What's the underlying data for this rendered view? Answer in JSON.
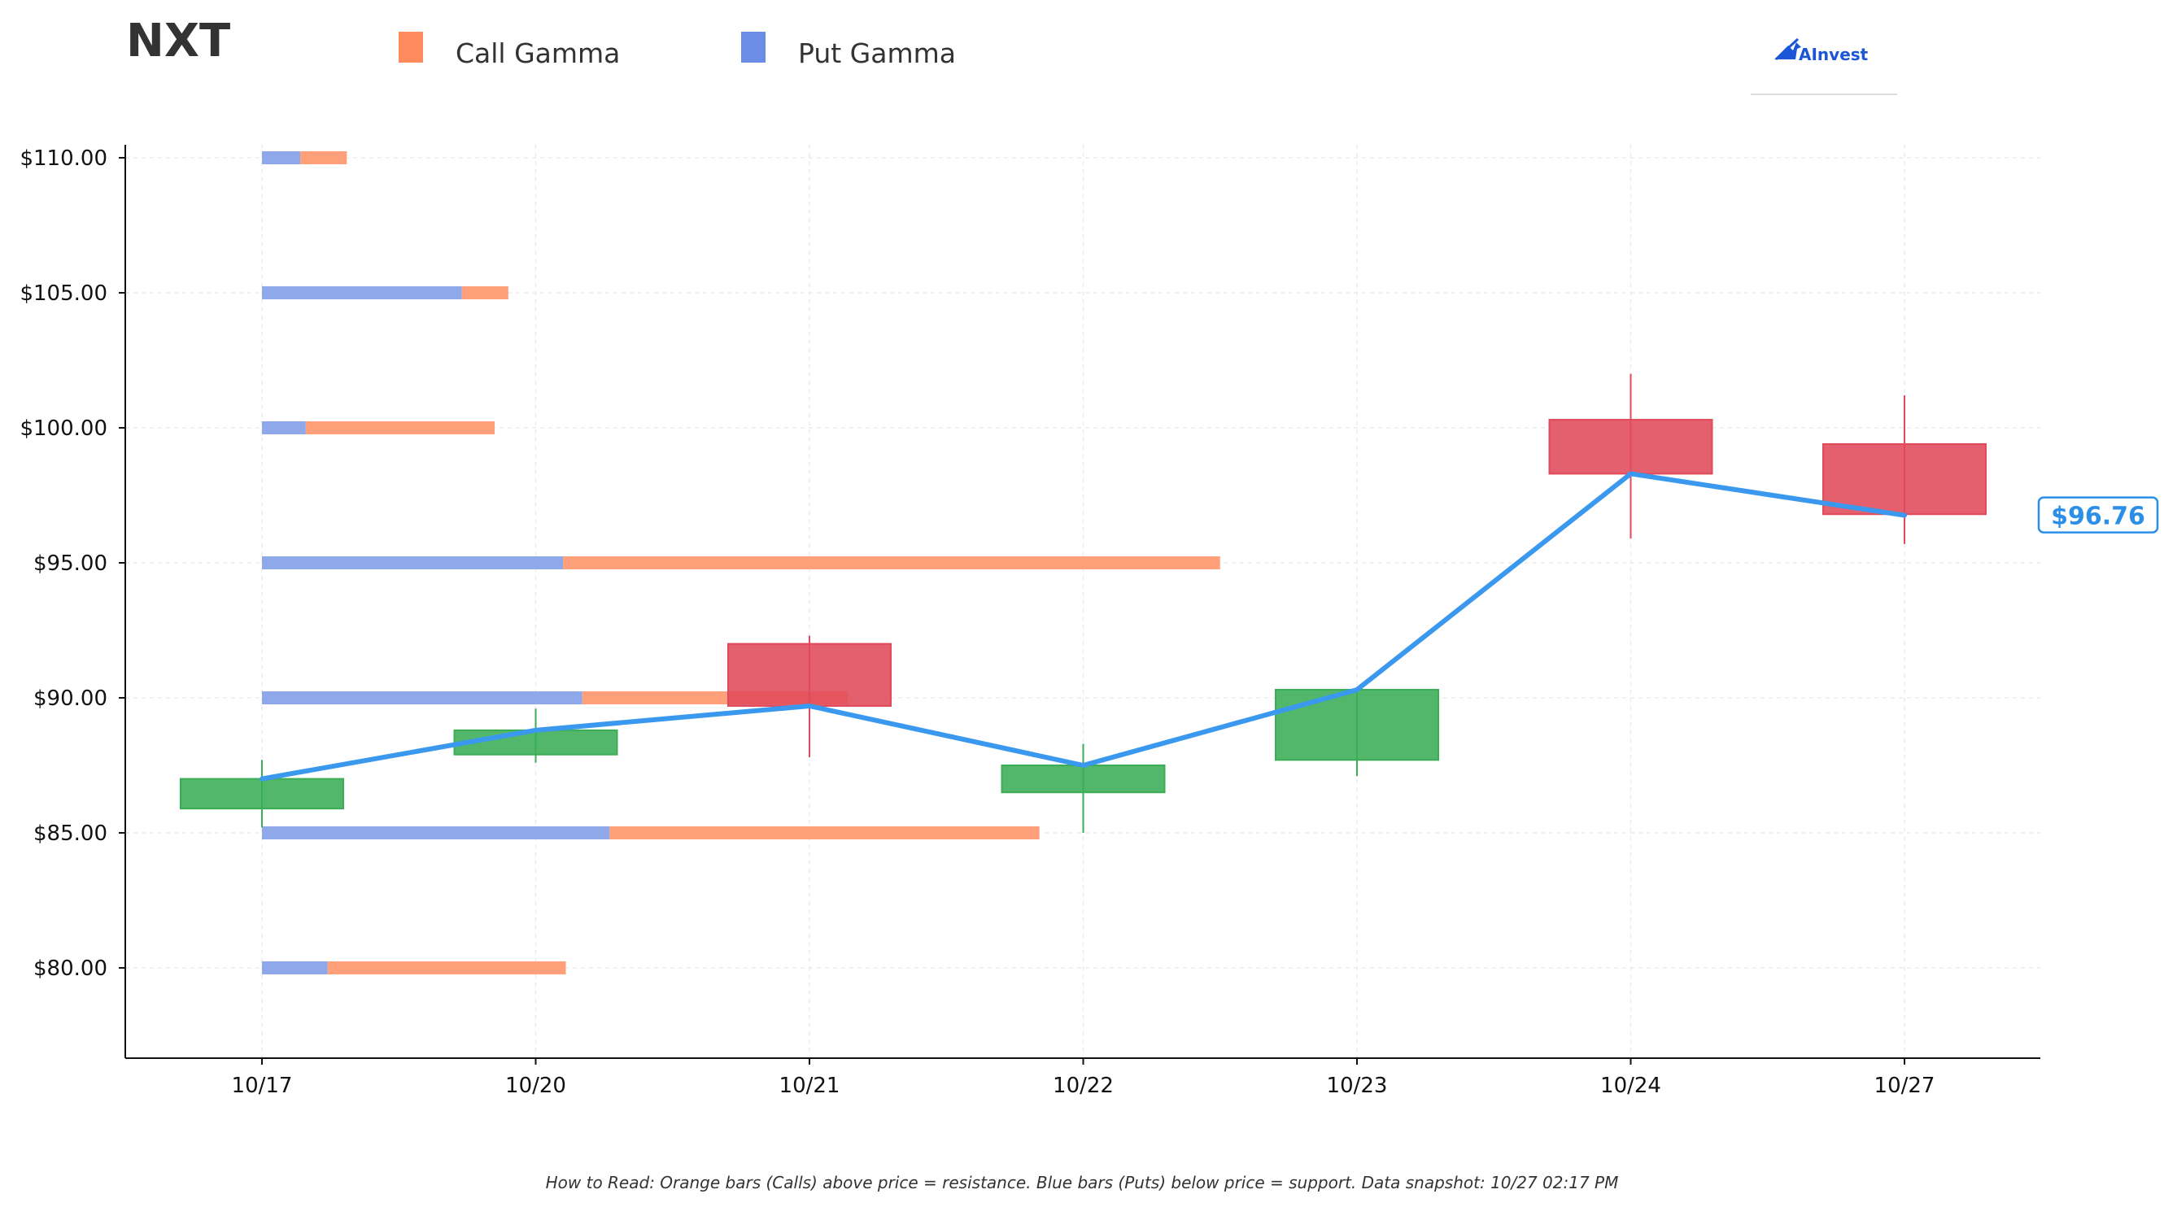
{
  "ticker": "NXT",
  "brand": {
    "name": "AInvest",
    "icon": "chart-arrow-icon"
  },
  "legend": [
    {
      "label": "Call Gamma",
      "color": "#ff8a5c"
    },
    {
      "label": "Put Gamma",
      "color": "#6b8de6"
    }
  ],
  "footnote": "How to Read: Orange bars (Calls) above price = resistance. Blue bars (Puts) below price = support. Data snapshot: 10/27 02:17 PM",
  "price_tag": {
    "label": "$96.76",
    "value": 96.76,
    "color": "#2b8fe8"
  },
  "colors": {
    "call_bar": "#ffa07a",
    "put_bar": "#8fa8ea",
    "up_candle": "#3aad55",
    "down_candle": "#e04a5a",
    "price_line": "#3a99ee"
  },
  "chart_data": {
    "type": "candlestick",
    "title": "",
    "xlabel": "",
    "ylabel": "",
    "ylim": [
      76.7,
      110.4
    ],
    "grid": true,
    "legend_position": "top-left",
    "categories": [
      "10/17",
      "10/20",
      "10/21",
      "10/22",
      "10/23",
      "10/24",
      "10/27"
    ],
    "y_ticks": [
      80,
      85,
      90,
      95,
      100,
      105,
      110
    ],
    "y_tick_labels": [
      "$80.00",
      "$85.00",
      "$90.00",
      "$95.00",
      "$100.00",
      "$105.00",
      "$110.00"
    ],
    "candles": [
      {
        "date": "10/17",
        "open": 85.9,
        "close": 87.0,
        "high": 87.7,
        "low": 85.2
      },
      {
        "date": "10/20",
        "open": 87.9,
        "close": 88.8,
        "high": 89.6,
        "low": 87.6
      },
      {
        "date": "10/21",
        "open": 92.0,
        "close": 89.7,
        "high": 92.3,
        "low": 87.8
      },
      {
        "date": "10/22",
        "open": 86.5,
        "close": 87.5,
        "high": 88.3,
        "low": 85.0
      },
      {
        "date": "10/23",
        "open": 87.7,
        "close": 90.3,
        "high": 90.4,
        "low": 87.1
      },
      {
        "date": "10/24",
        "open": 100.3,
        "close": 98.3,
        "high": 102.0,
        "low": 95.9
      },
      {
        "date": "10/27",
        "open": 99.4,
        "close": 96.8,
        "high": 101.2,
        "low": 95.7
      }
    ],
    "price_line": [
      87.0,
      88.8,
      89.7,
      87.5,
      90.3,
      98.3,
      96.76
    ],
    "gamma_bars": [
      {
        "strike": 110,
        "put": 0.14,
        "call": 0.17
      },
      {
        "strike": 105,
        "put": 0.73,
        "call": 0.17
      },
      {
        "strike": 100,
        "put": 0.16,
        "call": 0.69
      },
      {
        "strike": 95,
        "put": 1.1,
        "call": 2.4
      },
      {
        "strike": 90,
        "put": 1.17,
        "call": 0.97
      },
      {
        "strike": 85,
        "put": 1.27,
        "call": 1.57
      },
      {
        "strike": 80,
        "put": 0.24,
        "call": 0.87
      }
    ],
    "series": [
      {
        "name": "Call Gamma"
      },
      {
        "name": "Put Gamma"
      }
    ]
  }
}
